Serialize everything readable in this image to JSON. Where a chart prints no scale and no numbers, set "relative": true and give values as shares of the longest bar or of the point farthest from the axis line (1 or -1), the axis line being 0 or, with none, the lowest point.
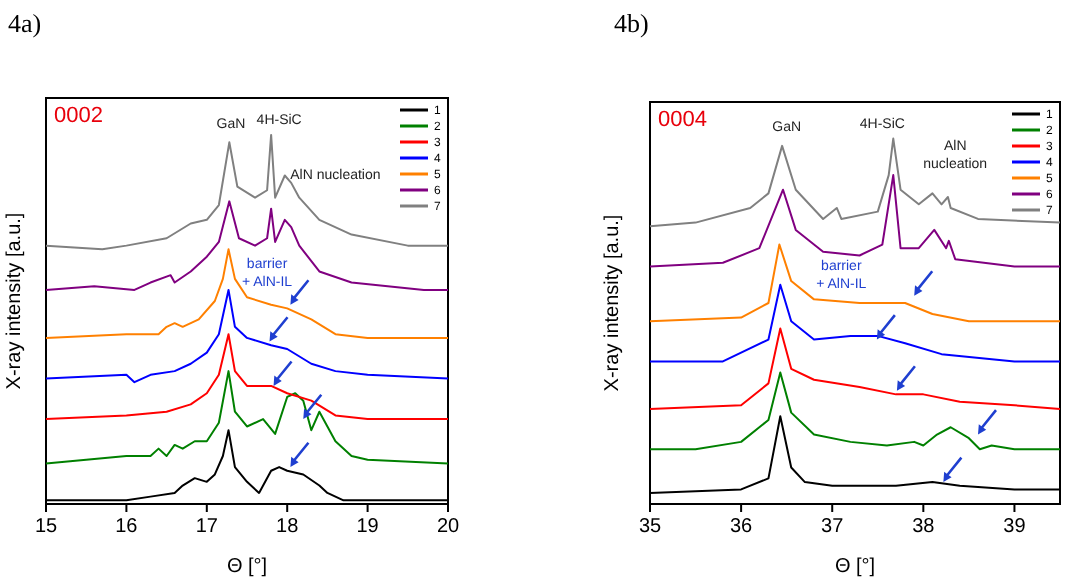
{
  "chart_data": [
    {
      "type": "line",
      "title": "4a)",
      "xlabel": "Θ [°]",
      "ylabel": "X-ray intensity [a.u.]",
      "relative": true,
      "legend": "top right",
      "xlim": [
        15,
        20
      ],
      "xticks": [
        15,
        16,
        17,
        18,
        19,
        20
      ],
      "annotations": [
        "0002",
        "GaN",
        "4H-SiC",
        "AlN nucleation",
        "barrier + AlN-IL"
      ],
      "series": [
        {
          "name": "1",
          "color": "#000000",
          "x": [
            15,
            16,
            16.3,
            16.6,
            16.7,
            16.85,
            17.0,
            17.1,
            17.2,
            17.27,
            17.35,
            17.5,
            17.65,
            17.8,
            17.9,
            18.0,
            18.2,
            18.4,
            18.5,
            18.7,
            19,
            20
          ],
          "values": [
            0.01,
            0.01,
            0.02,
            0.03,
            0.05,
            0.07,
            0.06,
            0.08,
            0.13,
            0.2,
            0.1,
            0.06,
            0.03,
            0.09,
            0.1,
            0.09,
            0.08,
            0.05,
            0.03,
            0.01,
            0.01,
            0.01
          ]
        },
        {
          "name": "2",
          "color": "#008000",
          "x": [
            15,
            15.5,
            16,
            16.3,
            16.4,
            16.5,
            16.6,
            16.7,
            16.85,
            17.0,
            17.15,
            17.27,
            17.35,
            17.5,
            17.7,
            17.85,
            18.0,
            18.1,
            18.2,
            18.3,
            18.4,
            18.5,
            18.6,
            18.8,
            19,
            20
          ],
          "values": [
            0.11,
            0.12,
            0.13,
            0.13,
            0.15,
            0.13,
            0.16,
            0.15,
            0.17,
            0.17,
            0.22,
            0.36,
            0.25,
            0.21,
            0.23,
            0.19,
            0.29,
            0.3,
            0.28,
            0.2,
            0.25,
            0.21,
            0.17,
            0.13,
            0.12,
            0.11
          ]
        },
        {
          "name": "3",
          "color": "#ff0000",
          "x": [
            15,
            16,
            16.5,
            16.8,
            17.0,
            17.15,
            17.27,
            17.35,
            17.5,
            17.8,
            18.0,
            18.3,
            18.6,
            19,
            20
          ],
          "values": [
            0.23,
            0.24,
            0.25,
            0.27,
            0.3,
            0.35,
            0.46,
            0.36,
            0.32,
            0.32,
            0.3,
            0.28,
            0.24,
            0.23,
            0.23
          ]
        },
        {
          "name": "4",
          "color": "#0000ff",
          "x": [
            15,
            16,
            16.1,
            16.3,
            16.6,
            16.8,
            17.0,
            17.15,
            17.27,
            17.35,
            17.5,
            17.8,
            18.0,
            18.3,
            18.6,
            19,
            20
          ],
          "values": [
            0.34,
            0.35,
            0.33,
            0.35,
            0.36,
            0.38,
            0.41,
            0.46,
            0.58,
            0.48,
            0.45,
            0.43,
            0.42,
            0.38,
            0.36,
            0.35,
            0.34
          ]
        },
        {
          "name": "5",
          "color": "#ff8000",
          "x": [
            15,
            16,
            16.4,
            16.5,
            16.6,
            16.7,
            16.9,
            17.1,
            17.2,
            17.27,
            17.35,
            17.5,
            17.8,
            18.0,
            18.3,
            18.6,
            19,
            20
          ],
          "values": [
            0.45,
            0.46,
            0.46,
            0.48,
            0.49,
            0.48,
            0.5,
            0.55,
            0.61,
            0.69,
            0.61,
            0.56,
            0.54,
            0.53,
            0.5,
            0.46,
            0.45,
            0.45
          ]
        },
        {
          "name": "6",
          "color": "#800080",
          "x": [
            15,
            15.6,
            16.1,
            16.3,
            16.55,
            16.6,
            16.8,
            17.0,
            17.15,
            17.28,
            17.4,
            17.6,
            17.75,
            17.8,
            17.85,
            17.97,
            18.05,
            18.15,
            18.4,
            18.8,
            19.7,
            20
          ],
          "values": [
            0.58,
            0.59,
            0.58,
            0.6,
            0.62,
            0.6,
            0.63,
            0.67,
            0.71,
            0.82,
            0.72,
            0.7,
            0.72,
            0.8,
            0.71,
            0.77,
            0.75,
            0.7,
            0.63,
            0.6,
            0.58,
            0.58
          ]
        },
        {
          "name": "7",
          "color": "#808080",
          "x": [
            15,
            15.7,
            16,
            16.5,
            16.8,
            17.0,
            17.15,
            17.28,
            17.38,
            17.6,
            17.75,
            17.8,
            17.85,
            17.97,
            18.05,
            18.15,
            18.4,
            18.8,
            19.5,
            20
          ],
          "values": [
            0.7,
            0.69,
            0.7,
            0.72,
            0.76,
            0.77,
            0.81,
            0.98,
            0.86,
            0.83,
            0.85,
            1.0,
            0.83,
            0.89,
            0.87,
            0.83,
            0.77,
            0.73,
            0.7,
            0.7
          ]
        }
      ]
    },
    {
      "type": "line",
      "title": "4b)",
      "xlabel": "Θ [°]",
      "ylabel": "X-ray intensity [a.u.]",
      "relative": true,
      "legend": "top right",
      "xlim": [
        35,
        39.5
      ],
      "xticks": [
        35,
        36,
        37,
        38,
        39
      ],
      "annotations": [
        "0004",
        "GaN",
        "4H-SiC",
        "AlN nucleation",
        "barrier + AlN-IL"
      ],
      "series": [
        {
          "name": "1",
          "color": "#000000",
          "x": [
            35,
            36,
            36.3,
            36.43,
            36.55,
            36.7,
            37,
            37.4,
            37.7,
            38.1,
            38.4,
            39,
            39.5
          ],
          "values": [
            0.03,
            0.04,
            0.07,
            0.24,
            0.1,
            0.06,
            0.05,
            0.05,
            0.05,
            0.06,
            0.05,
            0.04,
            0.04
          ]
        },
        {
          "name": "2",
          "color": "#008000",
          "x": [
            35,
            35.5,
            36,
            36.3,
            36.43,
            36.55,
            36.8,
            37.2,
            37.6,
            37.9,
            38.0,
            38.15,
            38.3,
            38.5,
            38.62,
            38.75,
            39,
            39.5
          ],
          "values": [
            0.15,
            0.15,
            0.17,
            0.23,
            0.36,
            0.25,
            0.19,
            0.17,
            0.16,
            0.17,
            0.16,
            0.19,
            0.21,
            0.18,
            0.15,
            0.16,
            0.15,
            0.15
          ]
        },
        {
          "name": "3",
          "color": "#ff0000",
          "x": [
            35,
            36,
            36.3,
            36.43,
            36.55,
            36.8,
            37.3,
            37.7,
            38,
            38.4,
            39,
            39.5
          ],
          "values": [
            0.26,
            0.27,
            0.33,
            0.48,
            0.37,
            0.34,
            0.32,
            0.3,
            0.3,
            0.28,
            0.27,
            0.26
          ]
        },
        {
          "name": "4",
          "color": "#0000ff",
          "x": [
            35,
            35.8,
            36.3,
            36.43,
            36.55,
            36.8,
            37.2,
            37.5,
            37.8,
            38.2,
            39,
            39.5
          ],
          "values": [
            0.39,
            0.39,
            0.45,
            0.6,
            0.5,
            0.45,
            0.46,
            0.46,
            0.44,
            0.41,
            0.39,
            0.39
          ]
        },
        {
          "name": "5",
          "color": "#ff8000",
          "x": [
            35,
            36,
            36.3,
            36.42,
            36.55,
            36.8,
            37.3,
            37.8,
            38.1,
            38.5,
            39.5
          ],
          "values": [
            0.5,
            0.51,
            0.55,
            0.71,
            0.61,
            0.56,
            0.55,
            0.55,
            0.52,
            0.5,
            0.5
          ]
        },
        {
          "name": "6",
          "color": "#800080",
          "x": [
            35,
            35.8,
            36.2,
            36.46,
            36.6,
            36.9,
            37.3,
            37.55,
            37.67,
            37.75,
            37.95,
            38.12,
            38.25,
            38.28,
            38.35,
            39,
            39.5
          ],
          "values": [
            0.65,
            0.66,
            0.7,
            0.86,
            0.75,
            0.69,
            0.68,
            0.71,
            0.9,
            0.7,
            0.7,
            0.75,
            0.7,
            0.72,
            0.67,
            0.65,
            0.65
          ]
        },
        {
          "name": "7",
          "color": "#808080",
          "x": [
            35,
            35.5,
            36.1,
            36.3,
            36.45,
            36.6,
            36.9,
            37.05,
            37.1,
            37.5,
            37.62,
            37.67,
            37.75,
            37.95,
            38.1,
            38.2,
            38.27,
            38.3,
            38.6,
            39.5
          ],
          "values": [
            0.76,
            0.77,
            0.81,
            0.85,
            0.98,
            0.86,
            0.78,
            0.81,
            0.78,
            0.8,
            0.9,
            1.0,
            0.86,
            0.82,
            0.85,
            0.82,
            0.84,
            0.81,
            0.78,
            0.77
          ]
        }
      ]
    }
  ]
}
